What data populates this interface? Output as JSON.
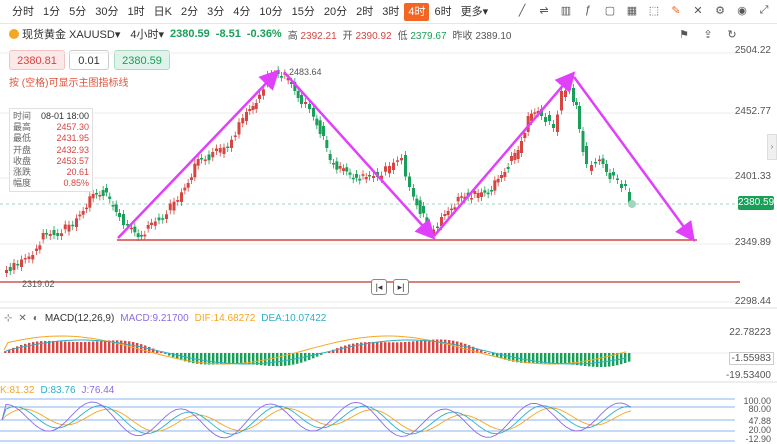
{
  "toolbar": {
    "periods": [
      "分时",
      "1分",
      "5分",
      "30分",
      "1时",
      "日K",
      "2分",
      "3分",
      "4分",
      "10分",
      "15分",
      "20分",
      "2时",
      "3时",
      "4时",
      "6时",
      "更多▾"
    ],
    "active_period": "4时"
  },
  "symbol": {
    "name": "现货黄金",
    "code": "XAUUSD▾",
    "timeframe": "4小时▾",
    "price": "2380.59",
    "change": "-8.51",
    "change_pct": "-0.36%",
    "high_label": "高",
    "high": "2392.21",
    "open_label": "开",
    "open": "2390.92",
    "low_label": "低",
    "low": "2379.67",
    "prev_label": "昨收",
    "prev": "2389.10"
  },
  "order": {
    "sell": "2380.81",
    "qty": "0.01",
    "buy": "2380.59"
  },
  "hint": "按 (空格)可显示主图指标线",
  "info_panel": {
    "rows": [
      {
        "k": "时间",
        "v": "08-01 18:00"
      },
      {
        "k": "最高",
        "v": "2457.30"
      },
      {
        "k": "最低",
        "v": "2431.95"
      },
      {
        "k": "开盘",
        "v": "2432.93"
      },
      {
        "k": "收盘",
        "v": "2453.57"
      },
      {
        "k": "涨跌",
        "v": "20.61"
      },
      {
        "k": "幅度",
        "v": "0.85%"
      }
    ]
  },
  "price_axis": [
    "2504.22",
    "2452.77",
    "2401.33",
    "2349.89",
    "2298.44"
  ],
  "last_price_tag": "2380.59",
  "chart_annotations": {
    "peak": "2483.64",
    "low": "2319.02"
  },
  "macd": {
    "name": "MACD(12,26,9)",
    "macd": "MACD:9.21700",
    "dif": "DIF:14.68272",
    "dea": "DEA:10.07422",
    "axis": [
      "22.78223",
      "-1.55983",
      "-19.53400"
    ]
  },
  "kdj": {
    "k": "K:81.32",
    "d": "D:83.76",
    "j": "J:76.44",
    "axis": [
      "100.00",
      "80.00",
      "47.88",
      "20.00",
      "-12.90"
    ]
  },
  "colors": {
    "up": "#d64541",
    "down": "#18a058",
    "arrow": "#e040fb",
    "support": "#d64541",
    "accent": "#f26522"
  }
}
